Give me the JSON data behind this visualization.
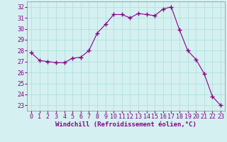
{
  "x": [
    0,
    1,
    2,
    3,
    4,
    5,
    6,
    7,
    8,
    9,
    10,
    11,
    12,
    13,
    14,
    15,
    16,
    17,
    18,
    19,
    20,
    21,
    22,
    23
  ],
  "y": [
    27.8,
    27.1,
    27.0,
    26.9,
    26.9,
    27.3,
    27.4,
    28.0,
    29.6,
    30.4,
    31.3,
    31.3,
    31.0,
    31.4,
    31.3,
    31.2,
    31.8,
    32.0,
    29.9,
    28.0,
    27.2,
    25.9,
    23.8,
    23.0
  ],
  "line_color": "#880088",
  "marker": "+",
  "marker_size": 4,
  "bg_color": "#d5f0f0",
  "grid_color": "#aadddd",
  "xlabel": "Windchill (Refroidissement éolien,°C)",
  "xlim": [
    -0.5,
    23.5
  ],
  "ylim": [
    22.5,
    32.5
  ],
  "yticks": [
    23,
    24,
    25,
    26,
    27,
    28,
    29,
    30,
    31,
    32
  ],
  "xticks": [
    0,
    1,
    2,
    3,
    4,
    5,
    6,
    7,
    8,
    9,
    10,
    11,
    12,
    13,
    14,
    15,
    16,
    17,
    18,
    19,
    20,
    21,
    22,
    23
  ],
  "xlabel_fontsize": 6.5,
  "tick_fontsize": 6,
  "line_width": 0.8,
  "marker_color": "#880088"
}
